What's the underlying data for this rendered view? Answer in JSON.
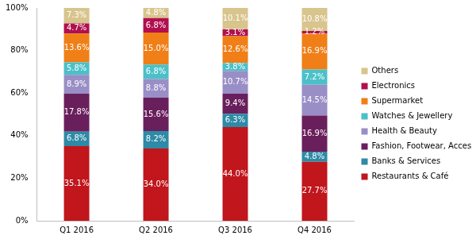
{
  "chart_data": {
    "type": "bar",
    "stacked": true,
    "data_labels": true,
    "grid": false,
    "legend": "right",
    "categories": [
      "Q1 2016",
      "Q2 2016",
      "Q3 2016",
      "Q4 2016"
    ],
    "ylim": [
      0,
      100
    ],
    "yticks": [
      {
        "value": 0,
        "label": "0%"
      },
      {
        "value": 20,
        "label": "20%"
      },
      {
        "value": 40,
        "label": "40%"
      },
      {
        "value": 60,
        "label": "60%"
      },
      {
        "value": 80,
        "label": "80%"
      },
      {
        "value": 100,
        "label": "100%"
      }
    ],
    "series": [
      {
        "name": "Restaurants & Café",
        "color": "#c0161c",
        "values": [
          35.1,
          34.0,
          44.0,
          27.7
        ],
        "value_labels": [
          "35.1%",
          "34.0%",
          "44.0%",
          "27.7%"
        ]
      },
      {
        "name": "Banks & Services",
        "color": "#2e8aa6",
        "values": [
          6.8,
          8.2,
          6.3,
          4.8
        ],
        "value_labels": [
          "6.8%",
          "8.2%",
          "6.3%",
          "4.8%"
        ]
      },
      {
        "name": "Fashion, Footwear, Accessories",
        "color": "#6a1f5d",
        "values": [
          17.8,
          15.6,
          9.4,
          16.9
        ],
        "value_labels": [
          "17.8%",
          "15.6%",
          "9.4%",
          "16.9%"
        ]
      },
      {
        "name": "Health & Beauty",
        "color": "#9a8ec6",
        "values": [
          8.9,
          8.8,
          10.7,
          14.5
        ],
        "value_labels": [
          "8.9%",
          "8.8%",
          "10.7%",
          "14.5%"
        ]
      },
      {
        "name": "Watches & Jewellery",
        "color": "#4cc0c8",
        "values": [
          5.8,
          6.8,
          3.8,
          7.2
        ],
        "value_labels": [
          "5.8%",
          "6.8%",
          "3.8%",
          "7.2%"
        ]
      },
      {
        "name": "Supermarket",
        "color": "#ef7f16",
        "values": [
          13.6,
          15.0,
          12.6,
          16.9
        ],
        "value_labels": [
          "13.6%",
          "15.0%",
          "12.6%",
          "16.9%"
        ]
      },
      {
        "name": "Electronics",
        "color": "#b10f4e",
        "values": [
          4.7,
          6.8,
          3.1,
          1.2
        ],
        "value_labels": [
          "4.7%",
          "6.8%",
          "3.1%",
          "1.2%"
        ]
      },
      {
        "name": "Others",
        "color": "#d8c48d",
        "values": [
          7.3,
          4.8,
          10.1,
          10.8
        ],
        "value_labels": [
          "7.3%",
          "4.8%",
          "10.1%",
          "10.8%"
        ]
      }
    ]
  }
}
